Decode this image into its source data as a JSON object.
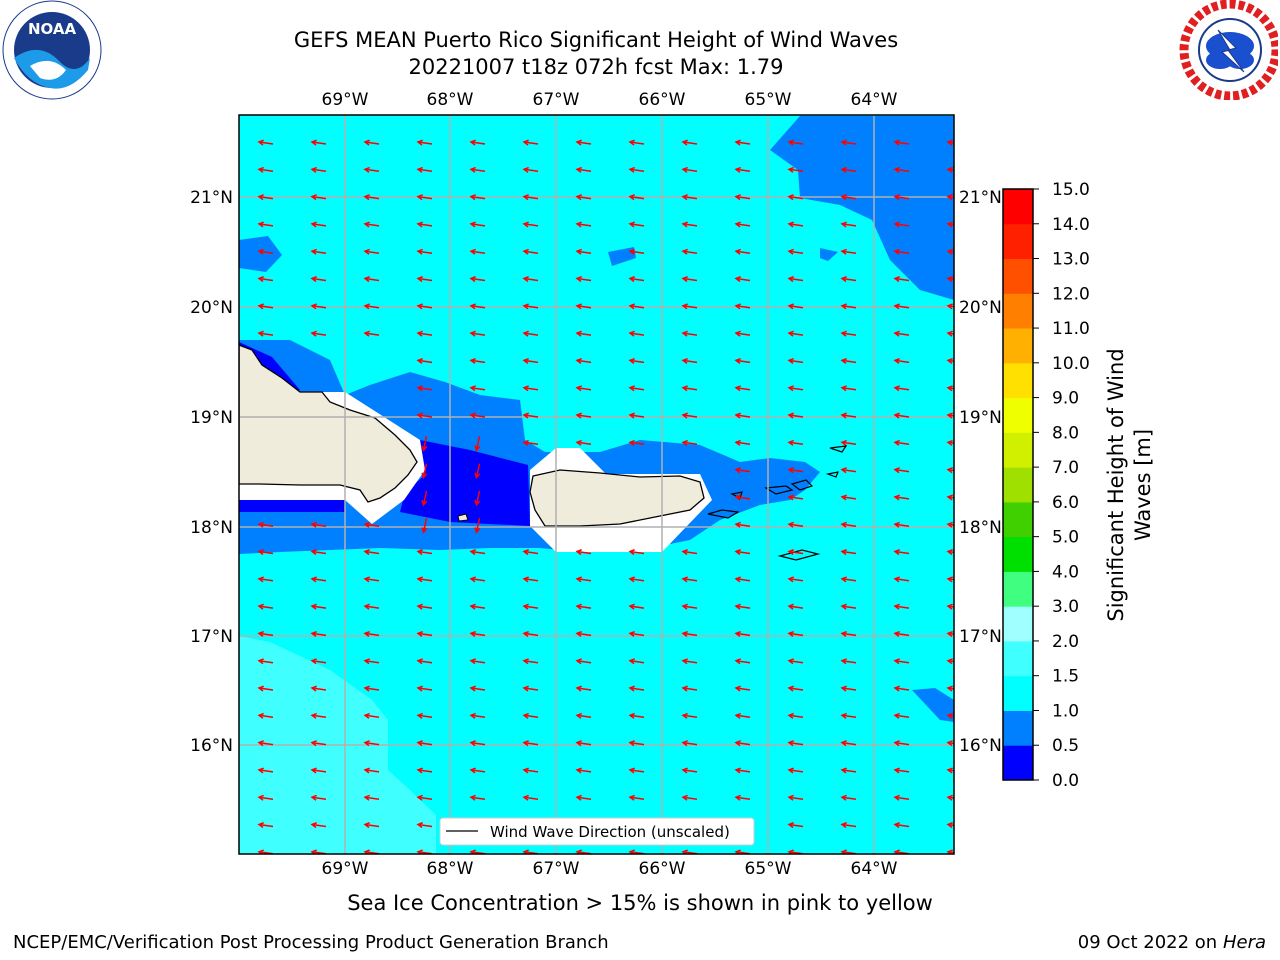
{
  "header": {
    "title_line1": "GEFS MEAN Puerto Rico Significant Height of Wind Waves",
    "title_line2": "20221007 t18z 072h fcst   Max: 1.79"
  },
  "logos": {
    "noaa_text": "NOAA",
    "noaa_ring_text": "NATIONAL OCEANIC AND ATMOSPHERIC ADMINISTRATION · U.S. DEPARTMENT OF COMMERCE",
    "nws_ring_text": "NATIONAL WEATHER SERVICE"
  },
  "map": {
    "lon_ticks": [
      "69°W",
      "68°W",
      "67°W",
      "66°W",
      "65°W",
      "64°W"
    ],
    "lat_ticks": [
      "21°N",
      "20°N",
      "19°N",
      "18°N",
      "17°N",
      "16°N"
    ],
    "legend_label": "Wind Wave Direction (unscaled)",
    "arrow_color": "#ff0000",
    "land_color": "#efecdc",
    "ocean_base_color": "#00ffff"
  },
  "colorbar": {
    "label": "Significant Height of Wind Waves [m]",
    "label_line1": "Significant Height of Wind",
    "label_line2": "Waves [m]",
    "ticks": [
      "0.0",
      "0.5",
      "1.0",
      "1.5",
      "2.0",
      "3.0",
      "4.0",
      "5.0",
      "6.0",
      "7.0",
      "8.0",
      "9.0",
      "10.0",
      "11.0",
      "12.0",
      "13.0",
      "14.0",
      "15.0"
    ],
    "colors": [
      "#0000ff",
      "#0080ff",
      "#00ffff",
      "#40ffff",
      "#a0ffff",
      "#40ff80",
      "#00e000",
      "#40d000",
      "#a0e000",
      "#d0f000",
      "#f0ff00",
      "#ffe000",
      "#ffb000",
      "#ff8000",
      "#ff5000",
      "#ff2000",
      "#ff0000"
    ]
  },
  "ice_note": "Sea Ice Concentration > 15% is shown in pink to yellow",
  "footer": {
    "left": "NCEP/EMC/Verification Post Processing Product Generation Branch",
    "right_prefix": "09 Oct 2022 on ",
    "right_host": "Hera"
  }
}
